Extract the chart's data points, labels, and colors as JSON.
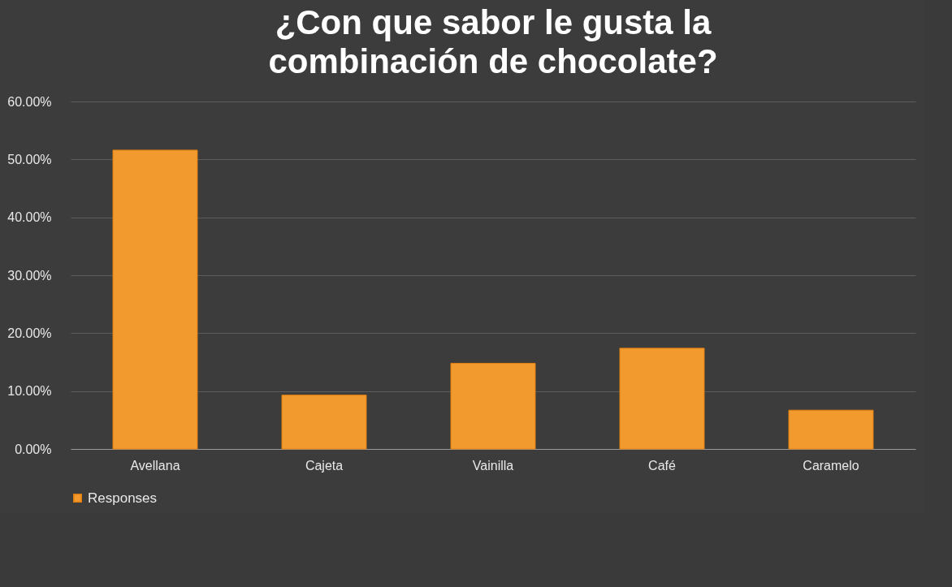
{
  "chart_data": {
    "type": "bar",
    "title": [
      "¿Con que sabor le gusta la",
      "combinación de chocolate?"
    ],
    "categories": [
      "Avellana",
      "Cajeta",
      "Vainilla",
      "Café",
      "Caramelo"
    ],
    "series": [
      {
        "name": "Responses",
        "color": "#f39a2e",
        "values": [
          51.6,
          9.3,
          14.8,
          17.4,
          6.7
        ]
      }
    ],
    "ylim": [
      0,
      60
    ],
    "yticks": [
      {
        "value": 0,
        "label": "0.00%"
      },
      {
        "value": 10,
        "label": "10.00%"
      },
      {
        "value": 20,
        "label": "20.00%"
      },
      {
        "value": 30,
        "label": "30.00%"
      },
      {
        "value": 40,
        "label": "40.00%"
      },
      {
        "value": 50,
        "label": "50.00%"
      },
      {
        "value": 60,
        "label": "60.00%"
      }
    ],
    "grid": "y",
    "legend": "bottom"
  }
}
